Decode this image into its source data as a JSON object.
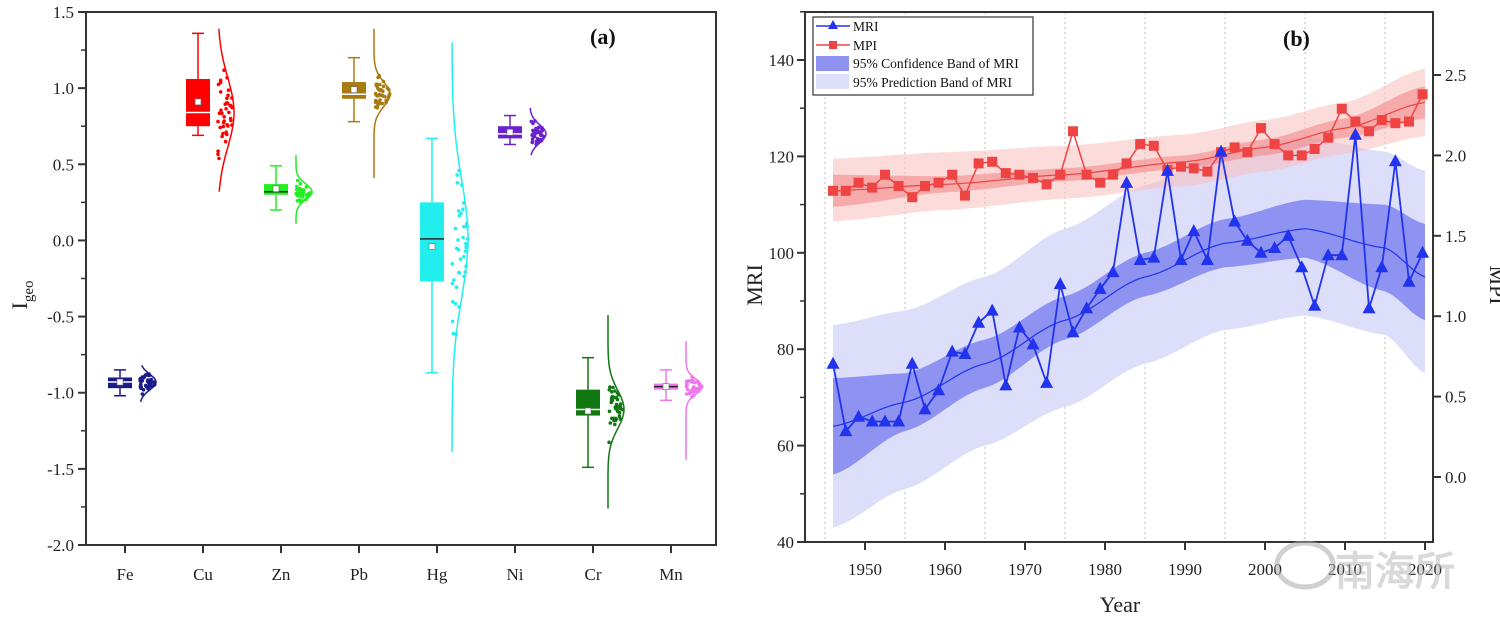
{
  "chart_data": [
    {
      "type": "box",
      "panel_label": "(a)",
      "title": "",
      "xlabel": "",
      "ylabel": "I",
      "ylabel_subscript": "geo",
      "ylim": [
        -2.0,
        1.5
      ],
      "yticks": [
        -2.0,
        -1.5,
        -1.0,
        -0.5,
        0.0,
        0.5,
        1.0,
        1.5
      ],
      "ytick_labels": [
        "-2.0",
        "-1.5",
        "-1.0",
        "-0.5",
        "0.0",
        "0.5",
        "1.0",
        "1.5"
      ],
      "categories": [
        "Fe",
        "Cu",
        "Zn",
        "Pb",
        "Hg",
        "Ni",
        "Cr",
        "Mn"
      ],
      "series": [
        {
          "name": "Fe",
          "color": "#1a1a8c",
          "whisker_low": -1.02,
          "q1": -0.97,
          "median": -0.93,
          "q3": -0.9,
          "whisker_high": -0.85,
          "mean": -0.93,
          "dist_min": -1.06,
          "dist_max": -0.82
        },
        {
          "name": "Cu",
          "color": "#ff0000",
          "whisker_low": 0.69,
          "q1": 0.75,
          "median": 0.84,
          "q3": 1.06,
          "whisker_high": 1.36,
          "mean": 0.91,
          "dist_min": 0.32,
          "dist_max": 1.39
        },
        {
          "name": "Zn",
          "color": "#22ee22",
          "whisker_low": 0.2,
          "q1": 0.3,
          "median": 0.32,
          "q3": 0.37,
          "whisker_high": 0.49,
          "mean": 0.34,
          "dist_min": 0.11,
          "dist_max": 0.56
        },
        {
          "name": "Pb",
          "color": "#a87a10",
          "whisker_low": 0.78,
          "q1": 0.93,
          "median": 0.96,
          "q3": 1.04,
          "whisker_high": 1.2,
          "mean": 0.99,
          "dist_min": 0.41,
          "dist_max": 1.39
        },
        {
          "name": "Hg",
          "color": "#22eeee",
          "whisker_low": -0.87,
          "q1": -0.27,
          "median": 0.01,
          "q3": 0.25,
          "whisker_high": 0.67,
          "mean": -0.04,
          "dist_min": -1.39,
          "dist_max": 1.3
        },
        {
          "name": "Ni",
          "color": "#6a22cc",
          "whisker_low": 0.63,
          "q1": 0.67,
          "median": 0.7,
          "q3": 0.75,
          "whisker_high": 0.82,
          "mean": 0.71,
          "dist_min": 0.56,
          "dist_max": 0.87
        },
        {
          "name": "Cr",
          "color": "#117711",
          "whisker_low": -1.49,
          "q1": -1.15,
          "median": -1.11,
          "q3": -0.98,
          "whisker_high": -0.77,
          "mean": -1.12,
          "dist_min": -1.76,
          "dist_max": -0.49
        },
        {
          "name": "Mn",
          "color": "#ee77ee",
          "whisker_low": -1.05,
          "q1": -0.98,
          "median": -0.96,
          "q3": -0.94,
          "whisker_high": -0.85,
          "mean": -0.96,
          "dist_min": -1.44,
          "dist_max": -0.66
        }
      ]
    },
    {
      "type": "line",
      "panel_label": "(b)",
      "title": "",
      "xlabel": "Year",
      "ylabel": "MRI",
      "ylabel_right": "MPI",
      "xlim": [
        1943,
        2021
      ],
      "ylim": [
        40,
        150
      ],
      "ylim_right": [
        -0.4,
        2.8
      ],
      "xticks": [
        1950,
        1960,
        1970,
        1980,
        1990,
        2000,
        2010,
        2020
      ],
      "xtick_labels": [
        "1950",
        "1960",
        "1970",
        "1980",
        "1990",
        "2000",
        "2010",
        "2020"
      ],
      "yticks": [
        40,
        60,
        80,
        100,
        120,
        140
      ],
      "ytick_labels": [
        "40",
        "60",
        "80",
        "100",
        "120",
        "140"
      ],
      "yticks_right": [
        0.0,
        0.5,
        1.0,
        1.5,
        2.0,
        2.5
      ],
      "ytick_labels_right": [
        "0.0",
        "0.5",
        "1.0",
        "1.5",
        "2.0",
        "2.5"
      ],
      "grid": "vertical dotted at 1945, 1955, 1965, 1975, 1985, 1995, 2005, 2015",
      "vgrid": [
        1945,
        1955,
        1965,
        1975,
        1985,
        1995,
        2005,
        2015
      ],
      "legend_position": "top-left",
      "legend": [
        "MRI",
        "MPI",
        "95% Confidence Band of MRI",
        "95% Prediction Band of MRI"
      ],
      "x": [
        1946,
        1947.6,
        1949.2,
        1950.9,
        1952.5,
        1954.2,
        1955.9,
        1957.5,
        1959.2,
        1960.9,
        1962.5,
        1964.2,
        1965.9,
        1967.6,
        1969.3,
        1971,
        1972.7,
        1974.4,
        1976,
        1977.7,
        1979.4,
        1981,
        1982.7,
        1984.4,
        1986.1,
        1987.8,
        1989.5,
        1991.1,
        1992.8,
        1994.5,
        1996.2,
        1997.8,
        1999.5,
        2001.2,
        2002.9,
        2004.6,
        2006.2,
        2007.9,
        2009.6,
        2011.3,
        2013,
        2014.6,
        2016.3,
        2018,
        2019.7
      ],
      "series": [
        {
          "name": "MRI",
          "axis": "left",
          "color": "#2233ee",
          "marker": "triangle",
          "values": [
            77,
            63,
            66,
            65,
            65,
            65,
            77,
            67.5,
            71.5,
            79.5,
            79,
            85.5,
            88,
            72.5,
            84.5,
            81,
            73,
            93.5,
            83.5,
            88.5,
            92.5,
            96,
            114.5,
            98.5,
            99,
            117,
            98.5,
            104.5,
            98.5,
            121,
            106.5,
            102.5,
            100,
            101,
            103.5,
            97,
            89,
            99.5,
            99.5,
            124.5,
            88.5,
            97,
            119,
            94,
            100
          ]
        },
        {
          "name": "MPI",
          "axis": "right",
          "color": "#ee4444",
          "marker": "square",
          "values": [
            1.78,
            1.78,
            1.83,
            1.8,
            1.88,
            1.81,
            1.74,
            1.81,
            1.83,
            1.88,
            1.75,
            1.95,
            1.96,
            1.89,
            1.88,
            1.86,
            1.82,
            1.88,
            2.15,
            1.88,
            1.83,
            1.88,
            1.95,
            2.07,
            2.06,
            1.91,
            1.93,
            1.92,
            1.9,
            2.02,
            2.05,
            2.02,
            2.17,
            2.07,
            2.0,
            2.0,
            2.04,
            2.11,
            2.29,
            2.21,
            2.15,
            2.22,
            2.2,
            2.21,
            2.38
          ]
        }
      ],
      "fit_MRI": {
        "x": [
          1946,
          1955,
          1965,
          1975,
          1985,
          1995,
          2005,
          2015,
          2020
        ],
        "y": [
          64,
          69,
          77,
          86,
          95,
          102,
          105,
          101,
          95
        ]
      },
      "conf_band_MRI": {
        "x": [
          1946,
          1955,
          1965,
          1975,
          1985,
          1995,
          2005,
          2015,
          2020
        ],
        "lower": [
          54,
          63,
          72,
          82,
          91,
          97,
          99,
          92,
          86
        ],
        "upper": [
          74,
          75,
          82,
          91,
          100,
          107,
          111,
          110,
          106
        ]
      },
      "pred_band_MRI": {
        "x": [
          1946,
          1955,
          1965,
          1975,
          1985,
          1995,
          2005,
          2015,
          2020
        ],
        "lower": [
          43,
          51,
          60,
          68,
          77,
          84,
          87,
          83,
          75
        ],
        "upper": [
          85,
          88,
          95,
          105,
          114,
          121,
          124,
          121,
          117
        ]
      },
      "fit_MPI": {
        "x": [
          1946,
          1960,
          1975,
          1990,
          2000,
          2010,
          2020
        ],
        "y": [
          1.78,
          1.82,
          1.88,
          1.96,
          2.05,
          2.17,
          2.33
        ]
      },
      "conf_band_MPI": {
        "x": [
          1946,
          1960,
          1975,
          1990,
          2000,
          2010,
          2020
        ],
        "lower": [
          1.68,
          1.77,
          1.84,
          1.92,
          2.0,
          2.11,
          2.23
        ],
        "upper": [
          1.88,
          1.87,
          1.92,
          2.0,
          2.1,
          2.23,
          2.43
        ]
      },
      "pred_band_MPI": {
        "x": [
          1946,
          1960,
          1975,
          1990,
          2000,
          2010,
          2020
        ],
        "lower": [
          1.59,
          1.66,
          1.73,
          1.81,
          1.9,
          2.01,
          2.12
        ],
        "upper": [
          1.98,
          2.02,
          2.06,
          2.13,
          2.22,
          2.33,
          2.54
        ]
      }
    }
  ],
  "watermark": "南海所"
}
